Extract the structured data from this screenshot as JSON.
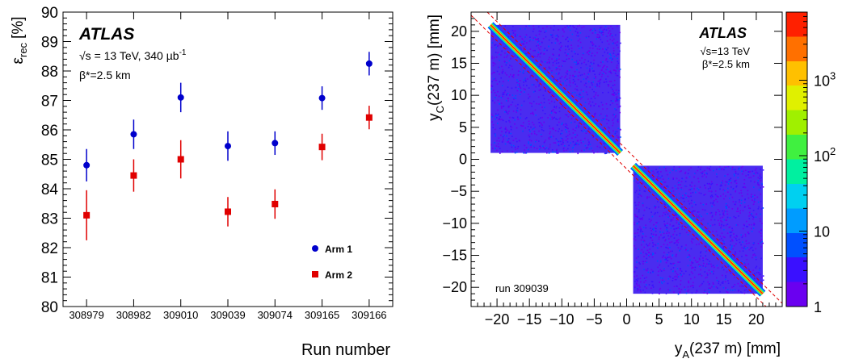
{
  "chart_data": [
    {
      "type": "scatter",
      "atlas_label": "ATLAS",
      "energy_label": "√s = 13 TeV, 340 µb",
      "energy_superscript": "-1",
      "beta_label": "β*=2.5 km",
      "ylabel": "ε",
      "ylabel_sub": "rec",
      "ylabel_unit": "[%]",
      "xlabel": "Run number",
      "ylim": [
        80,
        90
      ],
      "yticks": [
        "80",
        "81",
        "82",
        "83",
        "84",
        "85",
        "86",
        "87",
        "88",
        "89",
        "90"
      ],
      "categories": [
        "308979",
        "308982",
        "309010",
        "309039",
        "309074",
        "309165",
        "309166"
      ],
      "series": [
        {
          "name": "Arm 1",
          "color": "#0000cc",
          "marker": "circle",
          "values": [
            84.8,
            85.85,
            87.1,
            85.45,
            85.55,
            87.08,
            88.25
          ],
          "errors": [
            0.55,
            0.5,
            0.5,
            0.5,
            0.4,
            0.4,
            0.4
          ]
        },
        {
          "name": "Arm 2",
          "color": "#e00000",
          "marker": "square",
          "values": [
            83.1,
            84.45,
            85.0,
            83.22,
            83.48,
            85.42,
            86.42
          ],
          "errors": [
            0.85,
            0.55,
            0.65,
            0.5,
            0.5,
            0.45,
            0.4
          ]
        }
      ]
    },
    {
      "type": "heatmap",
      "atlas_label": "ATLAS",
      "energy_label": "√s=13 TeV",
      "beta_label": "β*=2.5 km",
      "run_label": "run 309039",
      "xlabel": "y",
      "xlabel_sub": "A",
      "xlabel_rest": "(237 m) [mm]",
      "ylabel": "y",
      "ylabel_sub": "C",
      "ylabel_rest": "(237 m) [mm]",
      "xlim": [
        -24,
        24
      ],
      "ylim": [
        -23,
        23
      ],
      "xticks": [
        -20,
        -15,
        -10,
        -5,
        0,
        5,
        10,
        15,
        20
      ],
      "yticks": [
        -20,
        -15,
        -10,
        -5,
        0,
        5,
        10,
        15,
        20
      ],
      "xtick_labels": [
        "−20",
        "−15",
        "−10",
        "−5",
        "0",
        "5",
        "10",
        "15",
        "20"
      ],
      "ytick_labels": [
        "−20",
        "−15",
        "−10",
        "−5",
        "0",
        "5",
        "10",
        "15",
        "20"
      ],
      "regions": [
        {
          "x": [
            -21,
            -1
          ],
          "y": [
            1,
            21
          ]
        },
        {
          "x": [
            1,
            21
          ],
          "y": [
            -21,
            -1
          ]
        }
      ],
      "diagonal": {
        "slope": -1,
        "from": [
          -21,
          21
        ],
        "to": [
          21,
          -21
        ]
      },
      "cut_lines": {
        "style": "dashed",
        "color": "#e00000",
        "offset": 1.5
      },
      "z_scale": "log",
      "zlim": [
        1,
        8000
      ],
      "z_ticks": [
        {
          "value": 1,
          "label": "1",
          "exp": ""
        },
        {
          "value": 10,
          "label": "10",
          "exp": ""
        },
        {
          "value": 100,
          "label": "10",
          "exp": "2"
        },
        {
          "value": 1000,
          "label": "10",
          "exp": "3"
        }
      ],
      "palette": [
        "#6a00f0",
        "#3a10ff",
        "#0050ff",
        "#009cff",
        "#00d0f0",
        "#00f0a0",
        "#40f040",
        "#a0f000",
        "#e0f000",
        "#ffc000",
        "#ff7000",
        "#ff2000"
      ]
    }
  ]
}
